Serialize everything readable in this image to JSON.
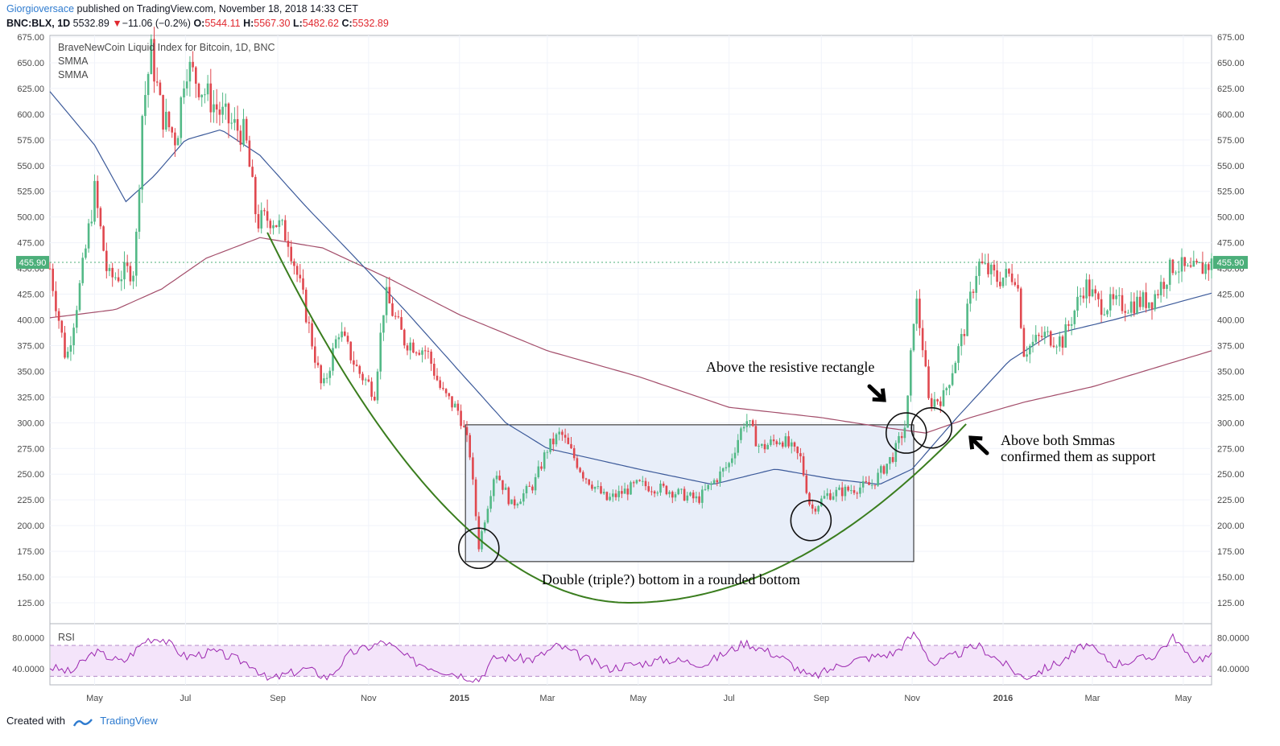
{
  "header": {
    "user": "Giorgioversace",
    "published": " published on TradingView.com, November 18, 2018 14:33 CET",
    "symbol": "BNC:BLX, 1D",
    "last": "5532.89",
    "down_arrow": "▼",
    "change": "−11.06 (−0.2%)",
    "o_label": "O:",
    "o_value": "5544.11",
    "h_label": "H:",
    "h_value": "5567.30",
    "l_label": "L:",
    "l_value": "5482.62",
    "c_label": "C:",
    "c_value": "5532.89"
  },
  "legend": {
    "series": "BraveNewCoin Liquid Index for Bitcoin, 1D, BNC",
    "smma1": "SMMA",
    "smma2": "SMMA",
    "rsi": "RSI"
  },
  "footer": {
    "created_with": "Created with",
    "brand": "TradingView"
  },
  "colors": {
    "up": "#53b987",
    "down": "#e0484f",
    "smma_fast": "#3c5a9a",
    "smma_slow": "#a34d6a",
    "curve": "#3a7d1e",
    "rect_fill": "#e8eef9",
    "rsi_line": "#9c27b0",
    "rsi_band": "#f4e4fa",
    "last_badge": "#4caf7a"
  },
  "chart_data": {
    "type": "candlestick",
    "title": "BraveNewCoin Liquid Index for Bitcoin, 1D, BNC",
    "y_ticks": [
      "675.00",
      "650.00",
      "625.00",
      "600.00",
      "575.00",
      "550.00",
      "525.00",
      "500.00",
      "475.00",
      "450.00",
      "425.00",
      "400.00",
      "375.00",
      "350.00",
      "325.00",
      "300.00",
      "275.00",
      "250.00",
      "225.00",
      "200.00",
      "175.00",
      "150.00",
      "125.00"
    ],
    "ylim": [
      110,
      675
    ],
    "x_ticks": [
      "May",
      "Jul",
      "Sep",
      "Nov",
      "2015",
      "Mar",
      "May",
      "Jul",
      "Sep",
      "Nov",
      "2016",
      "Mar",
      "May"
    ],
    "x_ticks_bold": [
      "2015",
      "2016"
    ],
    "x_range": [
      "2014-04-01",
      "2016-05-20"
    ],
    "last_price_label": "455.90",
    "last_price": 455.9,
    "price_path": [
      [
        "2014-04-01",
        450
      ],
      [
        "2014-04-12",
        360
      ],
      [
        "2014-04-22",
        440
      ],
      [
        "2014-05-01",
        525
      ],
      [
        "2014-05-10",
        440
      ],
      [
        "2014-05-20",
        445
      ],
      [
        "2014-05-28",
        450
      ],
      [
        "2014-06-02",
        600
      ],
      [
        "2014-06-08",
        660
      ],
      [
        "2014-06-15",
        600
      ],
      [
        "2014-06-25",
        575
      ],
      [
        "2014-07-01",
        650
      ],
      [
        "2014-07-12",
        625
      ],
      [
        "2014-07-25",
        600
      ],
      [
        "2014-08-01",
        590
      ],
      [
        "2014-08-10",
        580
      ],
      [
        "2014-08-18",
        495
      ],
      [
        "2014-08-28",
        500
      ],
      [
        "2014-09-08",
        480
      ],
      [
        "2014-09-18",
        420
      ],
      [
        "2014-10-01",
        330
      ],
      [
        "2014-10-12",
        390
      ],
      [
        "2014-10-25",
        350
      ],
      [
        "2014-11-05",
        330
      ],
      [
        "2014-11-12",
        425
      ],
      [
        "2014-11-25",
        380
      ],
      [
        "2014-12-10",
        370
      ],
      [
        "2014-12-20",
        330
      ],
      [
        "2015-01-01",
        310
      ],
      [
        "2015-01-08",
        270
      ],
      [
        "2015-01-14",
        180
      ],
      [
        "2015-01-25",
        255
      ],
      [
        "2015-02-05",
        220
      ],
      [
        "2015-02-20",
        240
      ],
      [
        "2015-03-01",
        275
      ],
      [
        "2015-03-10",
        290
      ],
      [
        "2015-03-25",
        250
      ],
      [
        "2015-04-10",
        225
      ],
      [
        "2015-05-01",
        240
      ],
      [
        "2015-05-20",
        235
      ],
      [
        "2015-06-10",
        225
      ],
      [
        "2015-07-01",
        260
      ],
      [
        "2015-07-12",
        305
      ],
      [
        "2015-07-22",
        275
      ],
      [
        "2015-08-05",
        285
      ],
      [
        "2015-08-18",
        265
      ],
      [
        "2015-08-25",
        215
      ],
      [
        "2015-09-05",
        230
      ],
      [
        "2015-09-20",
        235
      ],
      [
        "2015-10-05",
        240
      ],
      [
        "2015-10-20",
        270
      ],
      [
        "2015-10-28",
        300
      ],
      [
        "2015-11-03",
        425
      ],
      [
        "2015-11-08",
        375
      ],
      [
        "2015-11-12",
        320
      ],
      [
        "2015-11-22",
        325
      ],
      [
        "2015-12-05",
        385
      ],
      [
        "2015-12-15",
        455
      ],
      [
        "2015-12-28",
        440
      ],
      [
        "2016-01-10",
        445
      ],
      [
        "2016-01-15",
        370
      ],
      [
        "2016-01-28",
        385
      ],
      [
        "2016-02-10",
        380
      ],
      [
        "2016-02-25",
        435
      ],
      [
        "2016-03-05",
        415
      ],
      [
        "2016-03-25",
        415
      ],
      [
        "2016-04-10",
        420
      ],
      [
        "2016-04-25",
        455
      ],
      [
        "2016-05-05",
        445
      ],
      [
        "2016-05-20",
        455
      ]
    ],
    "smma_fast_path": [
      [
        "2014-04-01",
        622
      ],
      [
        "2014-05-01",
        570
      ],
      [
        "2014-05-22",
        515
      ],
      [
        "2014-06-10",
        540
      ],
      [
        "2014-07-01",
        575
      ],
      [
        "2014-07-25",
        585
      ],
      [
        "2014-08-20",
        560
      ],
      [
        "2014-09-20",
        510
      ],
      [
        "2014-10-20",
        465
      ],
      [
        "2014-11-25",
        410
      ],
      [
        "2015-01-01",
        350
      ],
      [
        "2015-02-01",
        300
      ],
      [
        "2015-03-01",
        275
      ],
      [
        "2015-05-01",
        255
      ],
      [
        "2015-06-20",
        240
      ],
      [
        "2015-08-01",
        255
      ],
      [
        "2015-09-10",
        245
      ],
      [
        "2015-10-10",
        240
      ],
      [
        "2015-11-01",
        255
      ],
      [
        "2015-12-01",
        305
      ],
      [
        "2016-01-05",
        360
      ],
      [
        "2016-02-01",
        385
      ],
      [
        "2016-03-15",
        400
      ],
      [
        "2016-05-20",
        426
      ]
    ],
    "smma_slow_path": [
      [
        "2014-04-01",
        402
      ],
      [
        "2014-05-15",
        410
      ],
      [
        "2014-06-15",
        430
      ],
      [
        "2014-07-15",
        460
      ],
      [
        "2014-08-20",
        480
      ],
      [
        "2014-10-01",
        470
      ],
      [
        "2014-11-15",
        440
      ],
      [
        "2015-01-01",
        405
      ],
      [
        "2015-03-01",
        370
      ],
      [
        "2015-05-01",
        345
      ],
      [
        "2015-07-01",
        315
      ],
      [
        "2015-09-01",
        305
      ],
      [
        "2015-10-15",
        295
      ],
      [
        "2015-11-10",
        290
      ],
      [
        "2015-12-10",
        305
      ],
      [
        "2016-01-15",
        320
      ],
      [
        "2016-03-01",
        335
      ],
      [
        "2016-05-20",
        370
      ]
    ],
    "rsi_ticks": [
      "80.0000",
      "40.0000"
    ],
    "rsi_range": [
      20,
      95
    ],
    "rsi_bands": [
      70,
      30
    ],
    "rsi_path": [
      [
        "2014-04-01",
        42
      ],
      [
        "2014-04-15",
        35
      ],
      [
        "2014-05-01",
        62
      ],
      [
        "2014-05-20",
        48
      ],
      [
        "2014-06-05",
        78
      ],
      [
        "2014-06-15",
        80
      ],
      [
        "2014-07-01",
        55
      ],
      [
        "2014-07-20",
        62
      ],
      [
        "2014-08-15",
        45
      ],
      [
        "2014-08-25",
        25
      ],
      [
        "2014-09-20",
        40
      ],
      [
        "2014-10-05",
        28
      ],
      [
        "2014-10-20",
        60
      ],
      [
        "2014-11-12",
        75
      ],
      [
        "2014-11-30",
        50
      ],
      [
        "2014-12-20",
        38
      ],
      [
        "2015-01-14",
        26
      ],
      [
        "2015-01-25",
        55
      ],
      [
        "2015-02-20",
        52
      ],
      [
        "2015-03-08",
        70
      ],
      [
        "2015-04-10",
        40
      ],
      [
        "2015-05-20",
        52
      ],
      [
        "2015-06-15",
        46
      ],
      [
        "2015-07-12",
        74
      ],
      [
        "2015-08-05",
        55
      ],
      [
        "2015-08-25",
        28
      ],
      [
        "2015-09-20",
        50
      ],
      [
        "2015-10-20",
        60
      ],
      [
        "2015-11-03",
        86
      ],
      [
        "2015-11-15",
        45
      ],
      [
        "2015-12-15",
        70
      ],
      [
        "2016-01-15",
        28
      ],
      [
        "2016-02-10",
        50
      ],
      [
        "2016-02-25",
        72
      ],
      [
        "2016-03-15",
        46
      ],
      [
        "2016-04-10",
        55
      ],
      [
        "2016-04-25",
        82
      ],
      [
        "2016-05-05",
        52
      ],
      [
        "2016-05-20",
        56
      ]
    ],
    "annotations": {
      "rect_label": "Above the resistive rectangle",
      "bottom_label": "Double (triple?) bottom in a rounded bottom",
      "smma_label_1": "Above both Smmas",
      "smma_label_2": "confirmed them as support"
    }
  }
}
